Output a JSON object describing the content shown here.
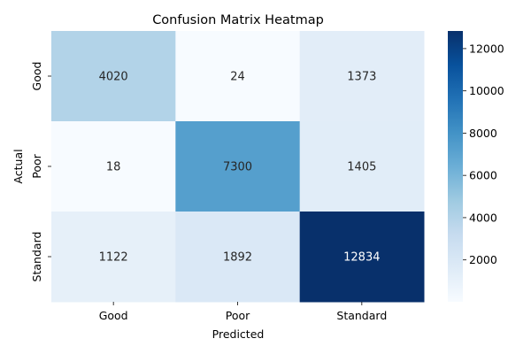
{
  "chart_data": {
    "type": "heatmap",
    "title": "Confusion Matrix Heatmap",
    "xlabel": "Predicted",
    "ylabel": "Actual",
    "x_categories": [
      "Good",
      "Poor",
      "Standard"
    ],
    "y_categories": [
      "Good",
      "Poor",
      "Standard"
    ],
    "values": [
      [
        4020,
        24,
        1373
      ],
      [
        18,
        7300,
        1405
      ],
      [
        1122,
        1892,
        12834
      ]
    ],
    "colorbar": {
      "range": [
        18,
        12834
      ],
      "ticks": [
        2000,
        4000,
        6000,
        8000,
        10000,
        12000
      ],
      "colormap": "Blues",
      "colors": [
        "#f7fbff",
        "#deebf7",
        "#c6dbef",
        "#9ecae1",
        "#6baed6",
        "#4292c6",
        "#2171b5",
        "#08519c",
        "#08306b"
      ]
    },
    "annotation_text_colors": {
      "light_cells": "#262626",
      "dark_cells": "#ffffff"
    }
  }
}
